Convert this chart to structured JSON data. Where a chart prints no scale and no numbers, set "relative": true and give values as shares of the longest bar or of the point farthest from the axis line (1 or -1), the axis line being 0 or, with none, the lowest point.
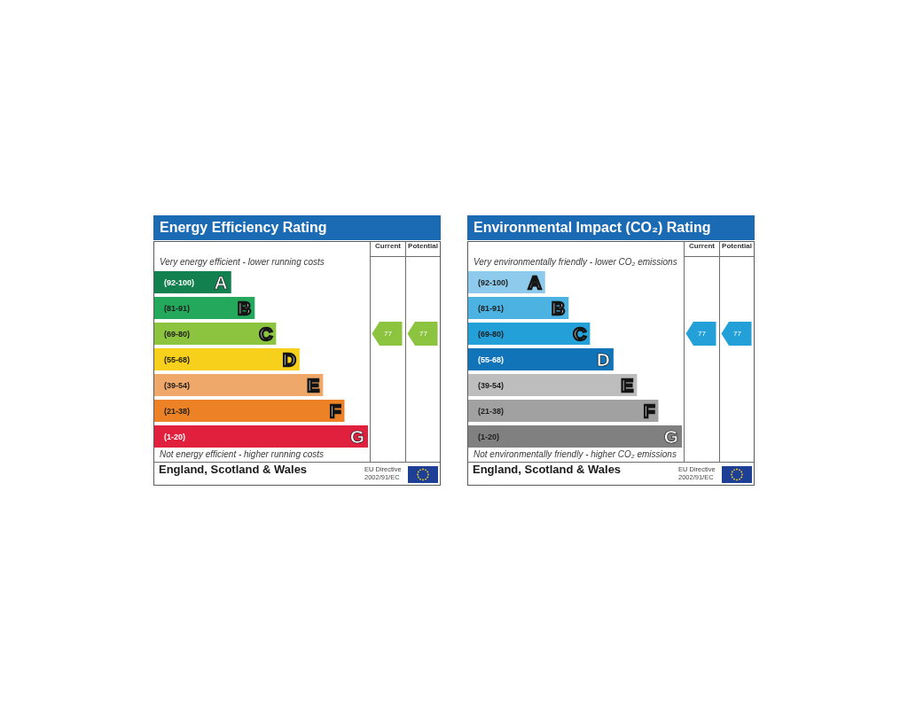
{
  "chart_data": [
    {
      "type": "bar",
      "orientation": "horizontal",
      "relative": true,
      "title": "Energy Efficiency Rating",
      "categories": [
        "A",
        "B",
        "C",
        "D",
        "E",
        "F",
        "G"
      ],
      "values": [
        0.36,
        0.47,
        0.57,
        0.68,
        0.79,
        0.89,
        1
      ],
      "colors": [
        "#12804f",
        "#23a85c",
        "#8cc43f",
        "#f6d01a",
        "#f0a86a",
        "#ec8225",
        "#e0203d"
      ],
      "annotations": [
        "Current",
        "Potential",
        "Very energy efficient - lower running costs",
        "(92-100)",
        "(81-91)",
        "(69-80)",
        "(55-68)",
        "(39-54)",
        "(21-38)",
        "(1-20)",
        "Not energy efficient - higher running costs",
        "77",
        "77",
        "England, Scotland & Wales",
        "EU Directive 2002/91/EC"
      ]
    },
    {
      "type": "bar",
      "orientation": "horizontal",
      "relative": true,
      "title": "Environmental Impact (CO₂) Rating",
      "categories": [
        "A",
        "B",
        "C",
        "D",
        "E",
        "F",
        "G"
      ],
      "values": [
        0.36,
        0.47,
        0.57,
        0.68,
        0.79,
        0.89,
        1
      ],
      "colors": [
        "#8dcaec",
        "#4cb2e1",
        "#23a0d8",
        "#1173b8",
        "#bdbdbd",
        "#a1a1a1",
        "#808080"
      ],
      "annotations": [
        "Current",
        "Potential",
        "Very environmentally friendly - lower CO₂ emissions",
        "(92-100)",
        "(81-91)",
        "(69-80)",
        "(55-68)",
        "(39-54)",
        "(21-38)",
        "(1-20)",
        "Not environmentally friendly - higher CO₂ emissions",
        "77",
        "77",
        "England, Scotland & Wales",
        "EU Directive 2002/91/EC"
      ]
    }
  ]
}
